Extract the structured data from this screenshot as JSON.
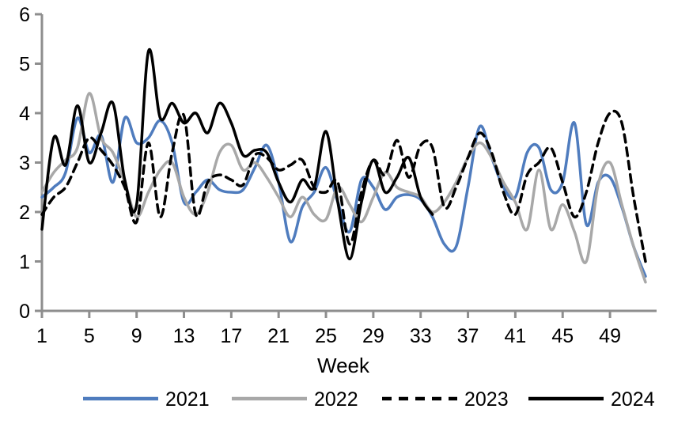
{
  "chart_data": {
    "type": "line",
    "title": "",
    "xlabel": "Week",
    "ylim": [
      0,
      6
    ],
    "xlim": [
      1,
      52
    ],
    "yticks": [
      0,
      1,
      2,
      3,
      4,
      5,
      6
    ],
    "xticks": [
      1,
      5,
      9,
      13,
      17,
      21,
      25,
      29,
      33,
      37,
      41,
      45,
      49
    ],
    "grid": false,
    "legend_position": "bottom",
    "axis_color": "#8E8E8E",
    "series": [
      {
        "name": "2021",
        "color": "#4F7CBE",
        "dash": null,
        "start_week": 1,
        "values": [
          2.3,
          2.5,
          2.8,
          3.9,
          3.2,
          3.55,
          2.6,
          3.9,
          3.4,
          3.5,
          3.85,
          3.4,
          2.2,
          2.4,
          2.65,
          2.45,
          2.4,
          2.45,
          2.9,
          3.35,
          2.6,
          1.4,
          2.1,
          2.4,
          2.9,
          2.2,
          1.6,
          2.65,
          2.5,
          2.05,
          2.3,
          2.35,
          2.25,
          1.9,
          1.35,
          1.3,
          2.5,
          3.73,
          3.1,
          2.5,
          2.3,
          3.2,
          3.3,
          2.45,
          2.6,
          3.8,
          1.75,
          2.6,
          2.7,
          2.1,
          1.3,
          0.7
        ]
      },
      {
        "name": "2022",
        "color": "#A8A8A8",
        "dash": null,
        "start_week": 1,
        "values": [
          2.4,
          2.8,
          3.05,
          3.3,
          4.4,
          3.5,
          3.2,
          2.6,
          1.9,
          2.4,
          2.85,
          3.0,
          2.3,
          1.95,
          2.4,
          3.2,
          3.35,
          2.85,
          3.0,
          2.7,
          2.3,
          1.9,
          2.3,
          1.95,
          1.85,
          2.5,
          2.15,
          1.8,
          2.3,
          2.8,
          2.5,
          2.4,
          2.3,
          2.0,
          2.2,
          2.6,
          3.1,
          3.4,
          3.1,
          2.6,
          2.2,
          1.65,
          2.85,
          1.65,
          2.15,
          1.6,
          1.0,
          2.55,
          3.0,
          2.15,
          1.3,
          0.58
        ]
      },
      {
        "name": "2023",
        "color": "#000000",
        "dash": "10 7",
        "start_week": 1,
        "values": [
          1.95,
          2.3,
          2.5,
          3.0,
          3.5,
          3.25,
          2.95,
          2.5,
          1.8,
          3.4,
          1.9,
          3.2,
          3.95,
          1.95,
          2.6,
          2.75,
          2.65,
          2.55,
          3.15,
          3.1,
          2.85,
          2.95,
          3.05,
          2.5,
          2.4,
          2.6,
          1.35,
          2.4,
          3.05,
          2.75,
          3.45,
          2.7,
          3.35,
          3.3,
          2.1,
          2.5,
          3.1,
          3.6,
          3.2,
          2.4,
          1.95,
          2.75,
          3.0,
          3.3,
          2.6,
          1.9,
          2.4,
          3.4,
          4.0,
          3.8,
          2.3,
          1.0
        ]
      },
      {
        "name": "2024",
        "color": "#000000",
        "dash": null,
        "start_week": 1,
        "values": [
          1.65,
          3.5,
          2.95,
          4.15,
          3.0,
          3.6,
          4.2,
          2.65,
          2.15,
          5.25,
          3.9,
          4.2,
          3.8,
          4.0,
          3.6,
          4.2,
          3.8,
          3.15,
          3.25,
          3.2,
          2.6,
          2.2,
          2.65,
          2.5,
          3.63,
          2.2,
          1.05,
          2.2,
          3.05,
          2.4,
          2.7,
          3.1,
          2.3,
          1.95
        ]
      }
    ],
    "legend": [
      "2021",
      "2022",
      "2023",
      "2024"
    ]
  }
}
